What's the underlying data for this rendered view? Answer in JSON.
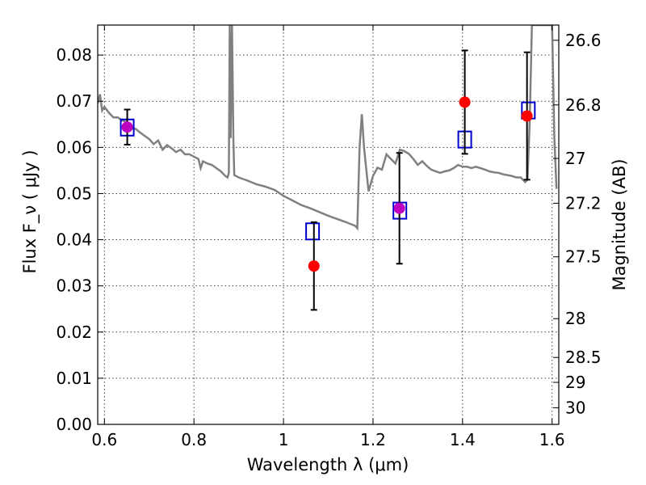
{
  "chart_data": {
    "type": "scatter",
    "xlabel": "Wavelength  λ (μm)",
    "ylabel": "Flux  F_ν  ( μJy )",
    "ylabel_right": "Magnitude (AB)",
    "xlim": [
      0.585,
      1.615
    ],
    "ylim": [
      0.0,
      0.0865
    ],
    "x_ticks": [
      0.6,
      0.8,
      1.0,
      1.2,
      1.4,
      1.6
    ],
    "x_tick_labels": [
      "0.6",
      "0.8",
      "1",
      "1.2",
      "1.4",
      "1.6"
    ],
    "y_ticks": [
      0.0,
      0.01,
      0.02,
      0.03,
      0.04,
      0.05,
      0.06,
      0.07,
      0.08
    ],
    "y_tick_labels": [
      "0.00",
      "0.01",
      "0.02",
      "0.03",
      "0.04",
      "0.05",
      "0.06",
      "0.07",
      "0.08"
    ],
    "right_ticks": [
      {
        "label": "26.6",
        "flux": 0.0832
      },
      {
        "label": "26.8",
        "flux": 0.0692
      },
      {
        "label": "27",
        "flux": 0.0576
      },
      {
        "label": "27.2",
        "flux": 0.0479
      },
      {
        "label": "27.5",
        "flux": 0.0363
      },
      {
        "label": "28",
        "flux": 0.0229
      },
      {
        "label": "28.5",
        "flux": 0.0145
      },
      {
        "label": "29",
        "flux": 0.0091
      },
      {
        "label": "30",
        "flux": 0.0036
      }
    ],
    "grid": true,
    "colors": {
      "template": "#808080",
      "observed": "#ff0000",
      "model_box": "#0000cc",
      "error_bar": "#000000",
      "overlap": "#bf00bf"
    },
    "series": [
      {
        "kind": "line",
        "x": [
          0.585,
          0.59,
          0.595,
          0.6,
          0.61,
          0.62,
          0.63,
          0.64,
          0.65,
          0.66,
          0.67,
          0.68,
          0.69,
          0.7,
          0.71,
          0.72,
          0.73,
          0.74,
          0.75,
          0.76,
          0.77,
          0.78,
          0.79,
          0.8,
          0.81,
          0.815,
          0.82,
          0.83,
          0.84,
          0.85,
          0.86,
          0.87,
          0.875,
          0.878,
          0.88,
          0.882,
          0.885,
          0.888,
          0.89,
          0.9,
          0.92,
          0.94,
          0.96,
          0.98,
          1.0,
          1.02,
          1.04,
          1.06,
          1.08,
          1.1,
          1.12,
          1.14,
          1.16,
          1.165,
          1.17,
          1.175,
          1.18,
          1.19,
          1.2,
          1.21,
          1.22,
          1.23,
          1.24,
          1.25,
          1.26,
          1.27,
          1.28,
          1.29,
          1.3,
          1.31,
          1.32,
          1.33,
          1.34,
          1.35,
          1.36,
          1.37,
          1.38,
          1.39,
          1.4,
          1.41,
          1.42,
          1.43,
          1.44,
          1.45,
          1.46,
          1.47,
          1.48,
          1.49,
          1.5,
          1.51,
          1.52,
          1.53,
          1.54,
          1.545,
          1.55,
          1.555,
          1.56,
          1.57,
          1.575,
          1.58,
          1.59,
          1.6,
          1.605,
          1.61
        ],
        "y": [
          0.0695,
          0.0715,
          0.068,
          0.0688,
          0.0675,
          0.0665,
          0.0665,
          0.0658,
          0.0655,
          0.0642,
          0.064,
          0.0632,
          0.0625,
          0.0618,
          0.0607,
          0.0615,
          0.0595,
          0.0605,
          0.0598,
          0.059,
          0.0595,
          0.0585,
          0.0585,
          0.058,
          0.0575,
          0.0555,
          0.057,
          0.0565,
          0.0562,
          0.0555,
          0.0548,
          0.0538,
          0.0535,
          0.0545,
          0.0865,
          0.062,
          0.0865,
          0.062,
          0.054,
          0.0535,
          0.0528,
          0.052,
          0.0515,
          0.0508,
          0.0495,
          0.0485,
          0.0475,
          0.0468,
          0.046,
          0.0452,
          0.0445,
          0.0438,
          0.043,
          0.0425,
          0.06,
          0.0672,
          0.06,
          0.0505,
          0.0538,
          0.0556,
          0.0552,
          0.0585,
          0.0575,
          0.0565,
          0.0595,
          0.0592,
          0.0586,
          0.0575,
          0.0562,
          0.057,
          0.056,
          0.0552,
          0.0548,
          0.0545,
          0.0548,
          0.055,
          0.0555,
          0.0562,
          0.0558,
          0.0558,
          0.0555,
          0.0558,
          0.0555,
          0.0552,
          0.0548,
          0.0546,
          0.0545,
          0.0542,
          0.054,
          0.0538,
          0.0535,
          0.0535,
          0.0525,
          0.053,
          0.0655,
          0.0865,
          0.0865,
          0.0865,
          0.0865,
          0.0865,
          0.0865,
          0.0865,
          0.062,
          0.051
        ]
      },
      {
        "kind": "squares",
        "x": [
          0.651,
          1.065,
          1.26,
          1.405,
          1.547
        ],
        "y": [
          0.0643,
          0.0418,
          0.0463,
          0.0617,
          0.068
        ]
      },
      {
        "kind": "points_with_errors",
        "x": [
          0.651,
          1.068,
          1.259,
          1.405,
          1.544
        ],
        "y": [
          0.0644,
          0.0343,
          0.0468,
          0.0698,
          0.0668
        ],
        "yerr": [
          0.0038,
          0.0095,
          0.012,
          0.0112,
          0.0138
        ]
      }
    ]
  }
}
